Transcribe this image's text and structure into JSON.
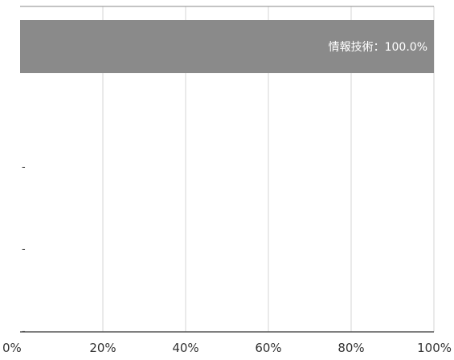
{
  "chart_data": {
    "type": "bar",
    "orientation": "horizontal",
    "stacked": true,
    "categories": [
      "",
      "",
      "",
      ""
    ],
    "series": [
      {
        "values": [
          100.0,
          null,
          null,
          null
        ],
        "color": "#8a8a8a",
        "data_labels": [
          "情報技術：100.0%",
          "",
          "",
          ""
        ]
      }
    ],
    "empty_category_marker": "-",
    "x_tick_labels": [
      "0%",
      "20%",
      "40%",
      "60%",
      "80%",
      "100%"
    ],
    "xlim": [
      0,
      100
    ],
    "x_ticks": [
      0,
      20,
      40,
      60,
      80,
      100
    ],
    "grid": "vertical",
    "legend": "none",
    "title": "",
    "xlabel": "",
    "ylabel": ""
  }
}
